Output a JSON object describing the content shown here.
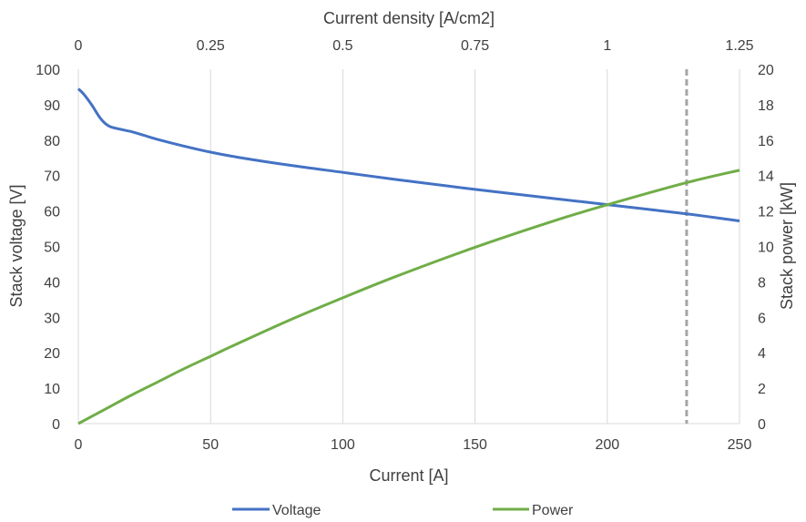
{
  "chart_data": {
    "type": "line",
    "x_bottom": {
      "label": "Current [A]",
      "range": [
        0,
        250
      ],
      "ticks": [
        0,
        50,
        100,
        150,
        200,
        250
      ]
    },
    "x_top": {
      "label": "Current density [A/cm2]",
      "range": [
        0,
        1.25
      ],
      "ticks": [
        "0",
        "0.25",
        "0.5",
        "0.75",
        "1",
        "1.25"
      ]
    },
    "y_left": {
      "label": "Stack voltage [V]",
      "range": [
        0,
        100
      ],
      "ticks": [
        0,
        10,
        20,
        30,
        40,
        50,
        60,
        70,
        80,
        90,
        100
      ]
    },
    "y_right": {
      "label": "Stack power [kW]",
      "range": [
        0,
        20
      ],
      "ticks": [
        0,
        2,
        4,
        6,
        8,
        10,
        12,
        14,
        16,
        18,
        20
      ]
    },
    "grid": "vertical",
    "legend_position": "bottom",
    "series": [
      {
        "name": "Voltage",
        "axis": "left",
        "color": "#4472C4",
        "x": [
          0,
          2,
          5,
          8,
          10,
          12,
          15,
          20,
          25,
          30,
          40,
          50,
          60,
          80,
          100,
          120,
          150,
          180,
          200,
          230,
          250
        ],
        "y": [
          94.5,
          93.0,
          90.0,
          86.5,
          84.8,
          83.8,
          83.2,
          82.4,
          81.3,
          80.2,
          78.3,
          76.6,
          75.2,
          72.9,
          70.9,
          68.9,
          66.1,
          63.5,
          61.8,
          59.2,
          57.2
        ]
      },
      {
        "name": "Power",
        "axis": "right",
        "color": "#70AD47",
        "x": [
          0,
          10,
          20,
          30,
          40,
          50,
          60,
          80,
          100,
          120,
          150,
          180,
          200,
          230,
          250
        ],
        "y": [
          0,
          0.8,
          1.6,
          2.35,
          3.1,
          3.8,
          4.5,
          5.85,
          7.1,
          8.3,
          9.95,
          11.45,
          12.35,
          13.6,
          14.3
        ]
      }
    ],
    "annotations": [
      {
        "type": "vertical_dashed_line",
        "x": 230,
        "color": "#A5A5A5"
      }
    ]
  }
}
